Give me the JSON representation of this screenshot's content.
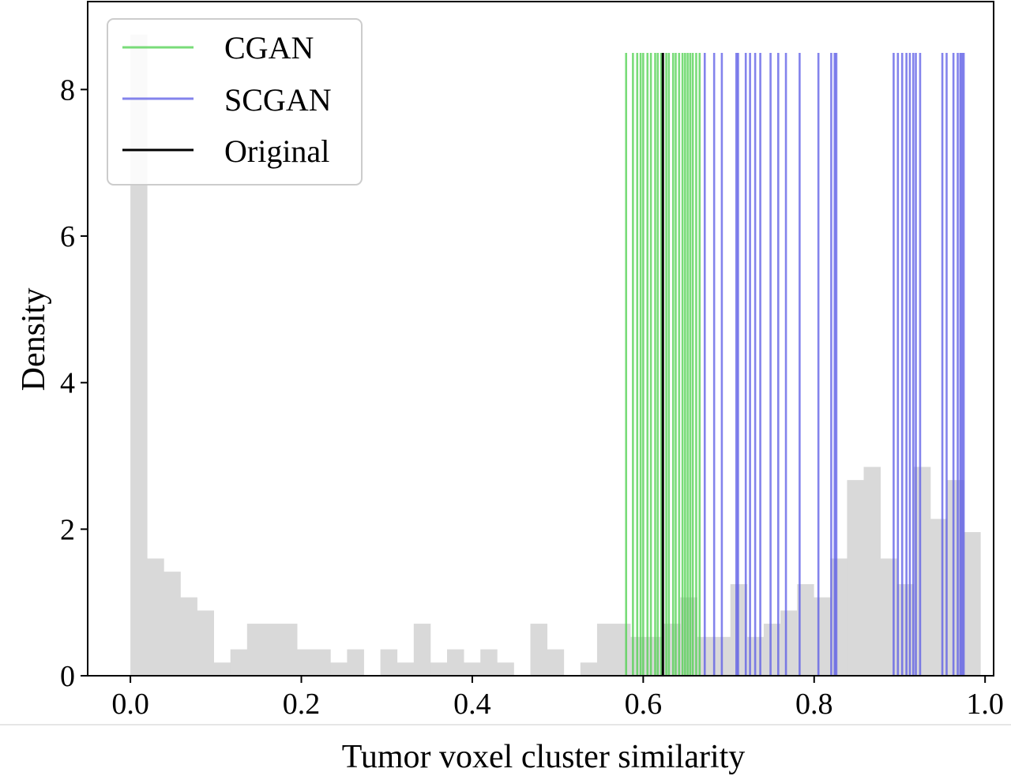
{
  "chart_data": {
    "type": "bar",
    "xlabel": "Tumor voxel cluster similarity",
    "ylabel": "Density",
    "xlim": [
      -0.05,
      1.01
    ],
    "ylim": [
      0,
      9.2
    ],
    "x_ticks": [
      "0.0",
      "0.2",
      "0.4",
      "0.6",
      "0.8",
      "1.0"
    ],
    "x_tick_values": [
      0.0,
      0.2,
      0.4,
      0.6,
      0.8,
      1.0
    ],
    "y_ticks": [
      "0",
      "2",
      "4",
      "6",
      "8"
    ],
    "y_tick_values": [
      0,
      2,
      4,
      6,
      8
    ],
    "grid": false,
    "legend_position": "top-left",
    "histogram": {
      "bin_width": 0.0195,
      "start": 0.0,
      "color": "#d9d9d9",
      "densities": [
        8.75,
        1.6,
        1.42,
        1.07,
        0.89,
        0.18,
        0.36,
        0.71,
        0.71,
        0.71,
        0.36,
        0.36,
        0.18,
        0.36,
        0.0,
        0.36,
        0.18,
        0.71,
        0.18,
        0.36,
        0.18,
        0.36,
        0.18,
        0.0,
        0.71,
        0.36,
        0.0,
        0.18,
        0.71,
        0.71,
        0.53,
        0.53,
        0.71,
        1.07,
        0.53,
        0.53,
        1.25,
        0.53,
        0.71,
        0.89,
        1.25,
        1.07,
        1.6,
        2.67,
        2.85,
        1.6,
        1.25,
        2.85,
        2.14,
        2.67,
        1.96
      ]
    },
    "series": [
      {
        "name": "CGAN",
        "color": "#4cd04c",
        "line_top": 8.5,
        "values": [
          0.58,
          0.588,
          0.593,
          0.597,
          0.6,
          0.605,
          0.609,
          0.614,
          0.617,
          0.621,
          0.627,
          0.63,
          0.635,
          0.638,
          0.642,
          0.646,
          0.649,
          0.652,
          0.655,
          0.658,
          0.662,
          0.666
        ]
      },
      {
        "name": "SCGAN",
        "color": "#5a5ae6",
        "line_top": 8.5,
        "values": [
          0.672,
          0.683,
          0.692,
          0.709,
          0.711,
          0.72,
          0.725,
          0.731,
          0.737,
          0.749,
          0.758,
          0.767,
          0.783,
          0.805,
          0.82,
          0.824,
          0.826,
          0.893,
          0.898,
          0.903,
          0.908,
          0.912,
          0.916,
          0.919,
          0.924,
          0.95,
          0.955,
          0.963,
          0.968,
          0.971,
          0.973,
          0.975
        ]
      },
      {
        "name": "Original",
        "color": "#000000",
        "line_top": 8.5,
        "values": [
          0.623
        ]
      }
    ]
  }
}
